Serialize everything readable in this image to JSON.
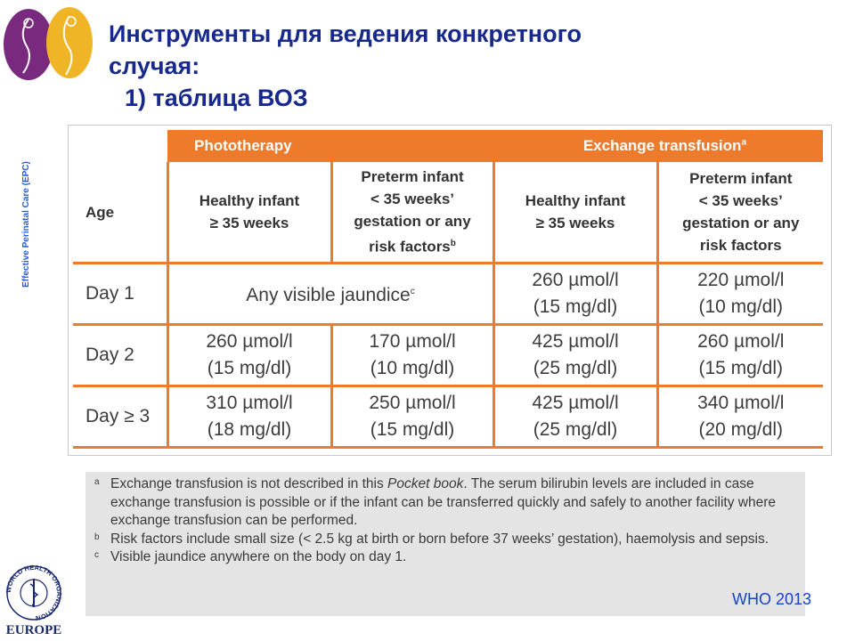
{
  "title": {
    "line1": "Инструменты для ведения  конкретного",
    "line2": "случая:",
    "line3": "1) таблица ВОЗ"
  },
  "side_label": "Effective Perinatal Care (EPC)",
  "table": {
    "group_phototherapy": "Phototherapy",
    "group_exchange": "Exchange transfusion",
    "group_exchange_mark": "a",
    "col_age": "Age",
    "col1_line1": "Healthy infant",
    "col1_line2": "≥ 35 weeks",
    "col2_line1": "Preterm infant",
    "col2_line2": "< 35 weeks’",
    "col2_line3": "gestation or any",
    "col2_line4": "risk factors",
    "col2_mark": "b",
    "col3_line1": "Healthy infant",
    "col3_line2": "≥ 35 weeks",
    "col4_line1": "Preterm infant",
    "col4_line2": "< 35 weeks’",
    "col4_line3": "gestation or any",
    "col4_line4": "risk factors",
    "rows": [
      {
        "age": "Day 1",
        "merged": "Any visible jaundice",
        "merged_mark": "c",
        "c3a": "260 µmol/l",
        "c3b": "(15 mg/dl)",
        "c4a": "220 µmol/l",
        "c4b": "(10 mg/dl)"
      },
      {
        "age": "Day 2",
        "c1a": "260 µmol/l",
        "c1b": "(15 mg/dl)",
        "c2a": "170 µmol/l",
        "c2b": "(10 mg/dl)",
        "c3a": "425 µmol/l",
        "c3b": "(25 mg/dl)",
        "c4a": "260 µmol/l",
        "c4b": "(15 mg/dl)"
      },
      {
        "age": "Day ≥ 3",
        "c1a": "310 µmol/l",
        "c1b": "(18 mg/dl)",
        "c2a": "250 µmol/l",
        "c2b": "(15 mg/dl)",
        "c3a": "425 µmol/l",
        "c3b": "(25 mg/dl)",
        "c4a": "340 µmol/l",
        "c4b": "(20 mg/dl)"
      }
    ]
  },
  "notes": {
    "a_mark": "a",
    "a_pre": "Exchange transfusion is not described in this ",
    "a_italic": "Pocket book",
    "a_post": ". The serum bilirubin levels are included in case exchange transfusion is possible or if the infant can be transferred quickly and safely to another facility where exchange transfusion can be performed.",
    "b_mark": "b",
    "b_text": "Risk factors include small size (< 2.5 kg at birth or born before 37 weeks’ gestation), haemolysis and sepsis.",
    "c_mark": "c",
    "c_text": "Visible jaundice anywhere on the body on day 1."
  },
  "source": "WHO 2013",
  "who_logo": {
    "ring_text": "WORLD HEALTH ORGANIZATION",
    "label": "EUROPE"
  },
  "colors": {
    "title": "#17298c",
    "orange": "#ee7a2c",
    "source": "#1744c9",
    "logo_purple": "#7a2a7e",
    "logo_yellow": "#f0b526"
  }
}
